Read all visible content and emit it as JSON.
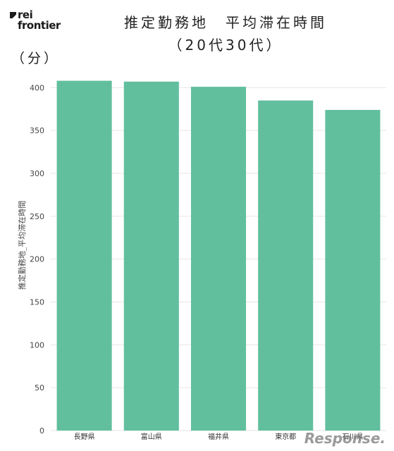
{
  "logo": {
    "line1": "rei",
    "line2": "frontier"
  },
  "title_line1": "推定勤務地　平均滞在時間",
  "title_line2": "（20代30代）",
  "unit_label": "（分）",
  "watermark": "Response.",
  "chart_data": {
    "type": "bar",
    "title": "推定勤務地　平均滞在時間（20代30代）",
    "xlabel": "",
    "ylabel": "推定勤務地_平均滞在時間",
    "categories": [
      "長野県",
      "富山県",
      "福井県",
      "東京都",
      "石川県"
    ],
    "values": [
      408,
      407,
      401,
      385,
      374
    ],
    "ylim": [
      0,
      420
    ],
    "yticks": [
      0,
      50,
      100,
      150,
      200,
      250,
      300,
      350,
      400
    ],
    "grid": true,
    "bar_color": "#62bf9e"
  }
}
